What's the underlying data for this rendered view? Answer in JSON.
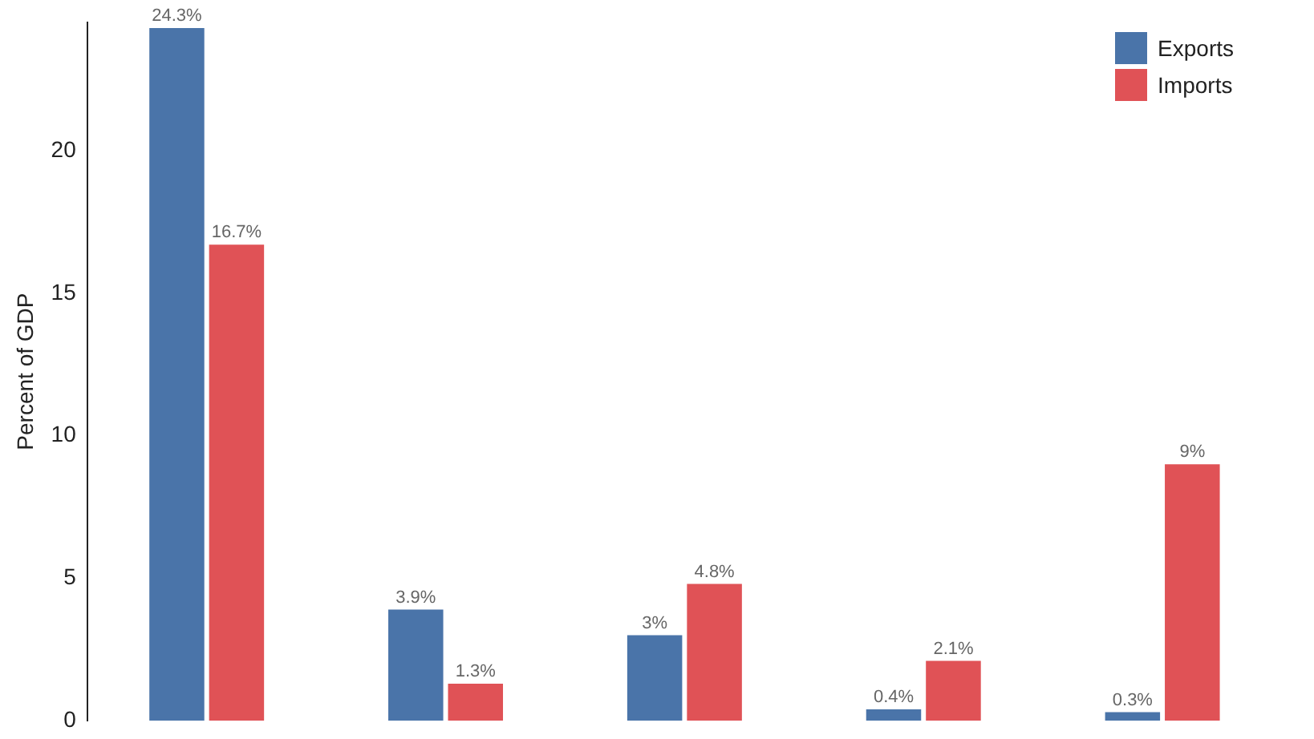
{
  "chart_data": {
    "type": "bar",
    "ylabel": "Percent of GDP",
    "categories": [
      null,
      null,
      null,
      null,
      null
    ],
    "series": [
      {
        "name": "Exports",
        "color": "#4a74a9",
        "values": [
          24.3,
          3.9,
          3,
          0.4,
          0.3
        ],
        "value_labels": [
          "24.3%",
          "3.9%",
          "3%",
          "0.4%",
          "0.3%"
        ]
      },
      {
        "name": "Imports",
        "color": "#e05256",
        "values": [
          16.7,
          1.3,
          4.8,
          2.1,
          9
        ],
        "value_labels": [
          "16.7%",
          "1.3%",
          "4.8%",
          "2.1%",
          "9%"
        ]
      }
    ],
    "ylim": [
      0,
      24.5
    ],
    "yticks": [
      0,
      5,
      10,
      15,
      20
    ],
    "grid": false,
    "legend": "top right",
    "tick_labels": "y"
  }
}
